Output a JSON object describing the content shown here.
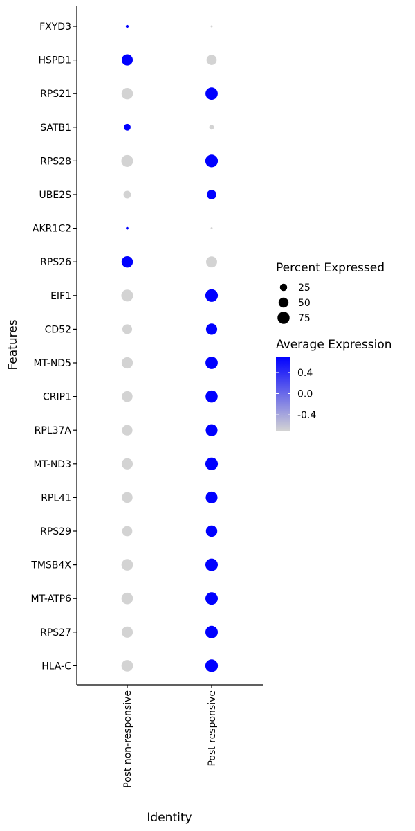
{
  "chart_data": {
    "type": "scatter",
    "subtype": "dot-plot",
    "xlabel": "Identity",
    "ylabel": "Features",
    "x_categories": [
      "Post non-responsive",
      "Post responsive"
    ],
    "features": [
      "FXYD3",
      "HSPD1",
      "RPS21",
      "SATB1",
      "RPS28",
      "UBE2S",
      "AKR1C2",
      "RPS26",
      "EIF1",
      "CD52",
      "MT-ND5",
      "CRIP1",
      "RPL37A",
      "MT-ND3",
      "RPL41",
      "RPS29",
      "TMSB4X",
      "MT-ATP6",
      "RPS27",
      "HLA-C"
    ],
    "points": [
      {
        "feature": "FXYD3",
        "identity": "Post non-responsive",
        "pct_exp": 3,
        "avg_exp": 0.7
      },
      {
        "feature": "FXYD3",
        "identity": "Post responsive",
        "pct_exp": 1,
        "avg_exp": -0.7
      },
      {
        "feature": "HSPD1",
        "identity": "Post non-responsive",
        "pct_exp": 63,
        "avg_exp": 0.7
      },
      {
        "feature": "HSPD1",
        "identity": "Post responsive",
        "pct_exp": 52,
        "avg_exp": -0.7
      },
      {
        "feature": "RPS21",
        "identity": "Post non-responsive",
        "pct_exp": 66,
        "avg_exp": -0.7
      },
      {
        "feature": "RPS21",
        "identity": "Post responsive",
        "pct_exp": 78,
        "avg_exp": 0.7
      },
      {
        "feature": "SATB1",
        "identity": "Post non-responsive",
        "pct_exp": 22,
        "avg_exp": 0.7
      },
      {
        "feature": "SATB1",
        "identity": "Post responsive",
        "pct_exp": 10,
        "avg_exp": -0.7
      },
      {
        "feature": "RPS28",
        "identity": "Post non-responsive",
        "pct_exp": 72,
        "avg_exp": -0.7
      },
      {
        "feature": "RPS28",
        "identity": "Post responsive",
        "pct_exp": 82,
        "avg_exp": 0.7
      },
      {
        "feature": "UBE2S",
        "identity": "Post non-responsive",
        "pct_exp": 27,
        "avg_exp": -0.7
      },
      {
        "feature": "UBE2S",
        "identity": "Post responsive",
        "pct_exp": 45,
        "avg_exp": 0.7
      },
      {
        "feature": "AKR1C2",
        "identity": "Post non-responsive",
        "pct_exp": 2,
        "avg_exp": 0.7
      },
      {
        "feature": "AKR1C2",
        "identity": "Post responsive",
        "pct_exp": 1,
        "avg_exp": -0.7
      },
      {
        "feature": "RPS26",
        "identity": "Post non-responsive",
        "pct_exp": 66,
        "avg_exp": 0.7
      },
      {
        "feature": "RPS26",
        "identity": "Post responsive",
        "pct_exp": 62,
        "avg_exp": -0.7
      },
      {
        "feature": "EIF1",
        "identity": "Post non-responsive",
        "pct_exp": 72,
        "avg_exp": -0.7
      },
      {
        "feature": "EIF1",
        "identity": "Post responsive",
        "pct_exp": 82,
        "avg_exp": 0.7
      },
      {
        "feature": "CD52",
        "identity": "Post non-responsive",
        "pct_exp": 48,
        "avg_exp": -0.7
      },
      {
        "feature": "CD52",
        "identity": "Post responsive",
        "pct_exp": 64,
        "avg_exp": 0.7
      },
      {
        "feature": "MT-ND5",
        "identity": "Post non-responsive",
        "pct_exp": 64,
        "avg_exp": -0.7
      },
      {
        "feature": "MT-ND5",
        "identity": "Post responsive",
        "pct_exp": 78,
        "avg_exp": 0.7
      },
      {
        "feature": "CRIP1",
        "identity": "Post non-responsive",
        "pct_exp": 58,
        "avg_exp": -0.7
      },
      {
        "feature": "CRIP1",
        "identity": "Post responsive",
        "pct_exp": 76,
        "avg_exp": 0.7
      },
      {
        "feature": "RPL37A",
        "identity": "Post non-responsive",
        "pct_exp": 56,
        "avg_exp": -0.7
      },
      {
        "feature": "RPL37A",
        "identity": "Post responsive",
        "pct_exp": 72,
        "avg_exp": 0.7
      },
      {
        "feature": "MT-ND3",
        "identity": "Post non-responsive",
        "pct_exp": 64,
        "avg_exp": -0.7
      },
      {
        "feature": "MT-ND3",
        "identity": "Post responsive",
        "pct_exp": 82,
        "avg_exp": 0.7
      },
      {
        "feature": "RPL41",
        "identity": "Post non-responsive",
        "pct_exp": 58,
        "avg_exp": -0.7
      },
      {
        "feature": "RPL41",
        "identity": "Post responsive",
        "pct_exp": 72,
        "avg_exp": 0.7
      },
      {
        "feature": "RPS29",
        "identity": "Post non-responsive",
        "pct_exp": 52,
        "avg_exp": -0.7
      },
      {
        "feature": "RPS29",
        "identity": "Post responsive",
        "pct_exp": 66,
        "avg_exp": 0.7
      },
      {
        "feature": "TMSB4X",
        "identity": "Post non-responsive",
        "pct_exp": 68,
        "avg_exp": -0.7
      },
      {
        "feature": "TMSB4X",
        "identity": "Post responsive",
        "pct_exp": 80,
        "avg_exp": 0.7
      },
      {
        "feature": "MT-ATP6",
        "identity": "Post non-responsive",
        "pct_exp": 68,
        "avg_exp": -0.7
      },
      {
        "feature": "MT-ATP6",
        "identity": "Post responsive",
        "pct_exp": 80,
        "avg_exp": 0.7
      },
      {
        "feature": "RPS27",
        "identity": "Post non-responsive",
        "pct_exp": 64,
        "avg_exp": -0.7
      },
      {
        "feature": "RPS27",
        "identity": "Post responsive",
        "pct_exp": 80,
        "avg_exp": 0.7
      },
      {
        "feature": "HLA-C",
        "identity": "Post non-responsive",
        "pct_exp": 68,
        "avg_exp": -0.7
      },
      {
        "feature": "HLA-C",
        "identity": "Post responsive",
        "pct_exp": 82,
        "avg_exp": 0.7
      }
    ],
    "size_legend": {
      "title": "Percent Expressed",
      "breaks": [
        25,
        50,
        75
      ]
    },
    "color_legend": {
      "title": "Average Expression",
      "breaks": [
        0.4,
        0.0,
        -0.4
      ],
      "break_labels": [
        "0.4",
        "0.0",
        "-0.4"
      ],
      "range": [
        -0.7,
        0.7
      ],
      "low_color": "#d3d3d3",
      "high_color": "#0000ff"
    },
    "grid": false,
    "legend_position": "right"
  }
}
